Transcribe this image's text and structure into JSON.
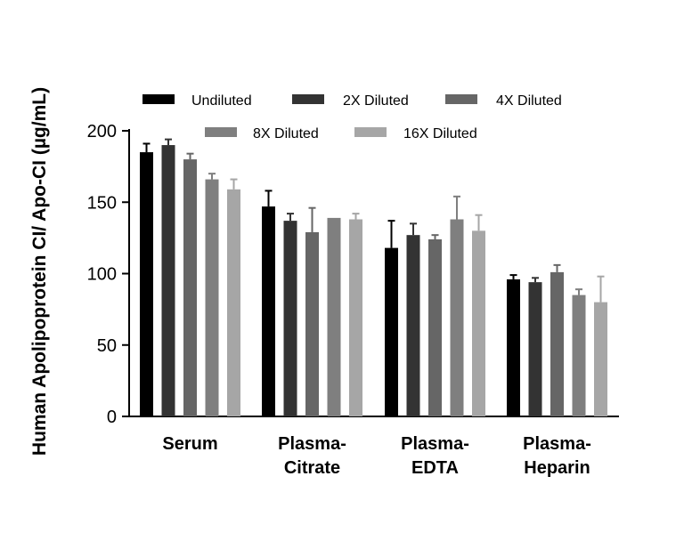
{
  "chart_data": {
    "type": "bar",
    "ylabel": "Human Apolipoprotein CI/ Apo-CI (µg/mL)",
    "xlabel": "",
    "ylim": [
      0,
      200
    ],
    "yticks": [
      "0",
      "50",
      "100",
      "150",
      "200"
    ],
    "categories": [
      [
        "Serum"
      ],
      [
        "Plasma-",
        "Citrate"
      ],
      [
        "Plasma-",
        "EDTA"
      ],
      [
        "Plasma-",
        "Heparin"
      ]
    ],
    "legend_position": "top",
    "grid": false,
    "series": [
      {
        "name": "Undiluted",
        "color": "#000000",
        "values": [
          185,
          147,
          118,
          96
        ],
        "errors": [
          6,
          11,
          19,
          3
        ]
      },
      {
        "name": "2X Diluted",
        "color": "#333333",
        "values": [
          190,
          137,
          127,
          94
        ],
        "errors": [
          4,
          5,
          8,
          3
        ]
      },
      {
        "name": "4X Diluted",
        "color": "#666666",
        "values": [
          180,
          129,
          124,
          101
        ],
        "errors": [
          4,
          17,
          3,
          5
        ]
      },
      {
        "name": "8X Diluted",
        "color": "#7f7f7f",
        "values": [
          166,
          139,
          138,
          85
        ],
        "errors": [
          4,
          0,
          16,
          4
        ]
      },
      {
        "name": "16X Diluted",
        "color": "#a6a6a6",
        "values": [
          159,
          138,
          130,
          80
        ],
        "errors": [
          7,
          4,
          11,
          18
        ]
      }
    ]
  }
}
